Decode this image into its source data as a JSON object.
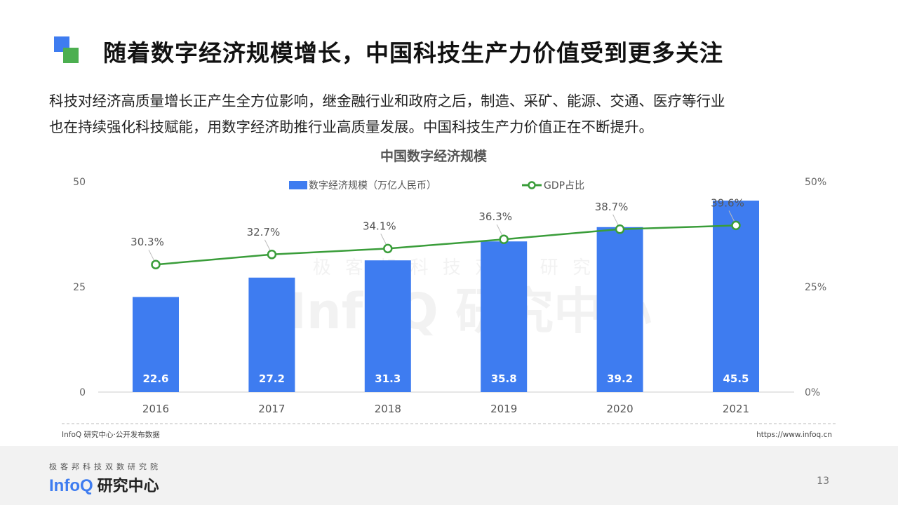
{
  "slide": {
    "title": "随着数字经济规模增长，中国科技生产力价值受到更多关注",
    "body_lines": [
      "科技对经济高质量增长正产生全方位影响，继金融行业和政府之后，制造、采矿、能源、交通、医疗等行业",
      "也在持续强化科技赋能，用数字经济助推行业高质量发展。中国科技生产力价值正在不断提升。"
    ],
    "source_left": "InfoQ 研究中心·公开发布数据",
    "source_right": "https://www.infoq.cn",
    "page_number": "13"
  },
  "brand": {
    "tagline": "极客邦科技双数研究院",
    "logo_en": "InfoQ",
    "logo_cn": "研究中心",
    "watermark_tagline": "极 客 邦 科 技 双 数 研 究 院",
    "watermark_logo": "InfoQ 研究中心"
  },
  "chart_data": {
    "type": "bar",
    "title": "中国数字经济规模",
    "categories": [
      "2016",
      "2017",
      "2018",
      "2019",
      "2020",
      "2021"
    ],
    "series": [
      {
        "name": "数字经济规模（万亿人民币）",
        "kind": "bar",
        "axis": "left",
        "color": "#3e7cf0",
        "values": [
          22.6,
          27.2,
          31.3,
          35.8,
          39.2,
          45.5
        ],
        "labels": [
          "22.6",
          "27.2",
          "31.3",
          "35.8",
          "39.2",
          "45.5"
        ]
      },
      {
        "name": "GDP占比",
        "kind": "line",
        "axis": "right",
        "color": "#3a9d3a",
        "values": [
          30.3,
          32.7,
          34.1,
          36.3,
          38.7,
          39.6
        ],
        "labels": [
          "30.3%",
          "32.7%",
          "34.1%",
          "36.3%",
          "38.7%",
          "39.6%"
        ]
      }
    ],
    "y_left": {
      "range": [
        0,
        50
      ],
      "ticks": [
        "0",
        "25",
        "50"
      ],
      "tick_values": [
        0,
        25,
        50
      ]
    },
    "y_right": {
      "range": [
        0,
        50
      ],
      "ticks": [
        "0%",
        "25%",
        "50%"
      ],
      "tick_values": [
        0,
        25,
        50
      ]
    },
    "legend_position": "top-center",
    "grid": false
  }
}
